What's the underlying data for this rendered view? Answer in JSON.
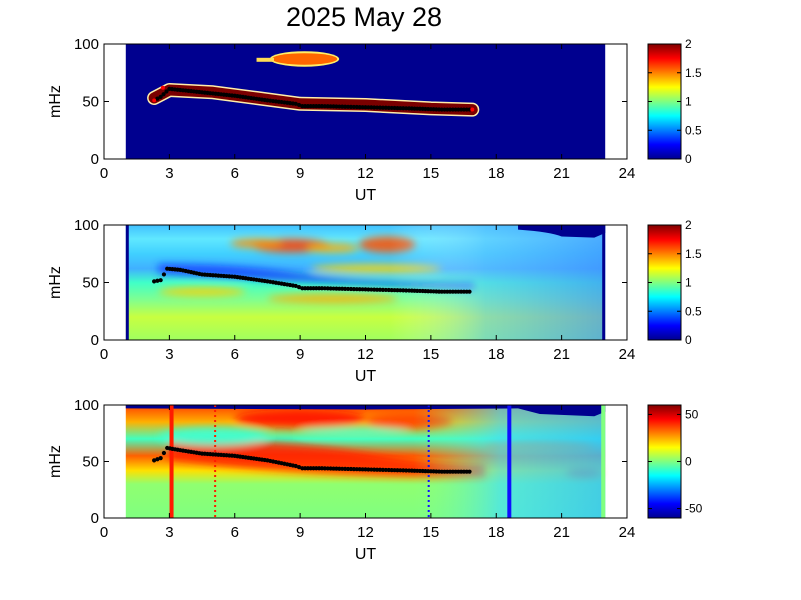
{
  "title": "2025 May 28",
  "colors": {
    "background_blue": "#00008f",
    "marker": "#000000",
    "peak_red": "#ff0000",
    "red_line": "#ff1a00",
    "blue_line": "#1010ff"
  },
  "colorbar_gradient": [
    "#00008f",
    "#0000ff",
    "#0080ff",
    "#00ffff",
    "#80ff80",
    "#ffff00",
    "#ff8000",
    "#ff0000",
    "#800000"
  ],
  "chart_data": [
    {
      "type": "heatmap",
      "name": "panel-1",
      "xlabel": "UT",
      "ylabel": "mHz",
      "xlim": [
        0,
        24
      ],
      "ylim": [
        0,
        100
      ],
      "xticks": [
        "0",
        "3",
        "6",
        "9",
        "12",
        "15",
        "18",
        "21",
        "24"
      ],
      "yticks": [
        "0",
        "50",
        "100"
      ],
      "data_extent_x": [
        1.0,
        23.0
      ],
      "colorbar": {
        "min": 0,
        "max": 2,
        "ticks": [
          "0",
          "0.5",
          "1",
          "1.5",
          "2"
        ]
      },
      "features": [
        {
          "kind": "band",
          "color": "#7a0000",
          "edge": "#ffeeaa",
          "path": [
            [
              2.3,
              53
            ],
            [
              3,
              60
            ],
            [
              5,
              58
            ],
            [
              7,
              53
            ],
            [
              9,
              48
            ],
            [
              12,
              47
            ],
            [
              15,
              44
            ],
            [
              16.9,
              43
            ]
          ],
          "thickness": 11
        },
        {
          "kind": "blob",
          "color": "#ff6600",
          "center": [
            9.2,
            87
          ],
          "rx": 1.5,
          "ry": 5
        }
      ],
      "peak_track": [
        [
          2.3,
          51
        ],
        [
          2.6,
          54
        ],
        [
          3.0,
          61
        ],
        [
          3.5,
          60
        ],
        [
          4.5,
          58
        ],
        [
          6.0,
          55
        ],
        [
          7.5,
          51
        ],
        [
          8.8,
          48
        ],
        [
          9.1,
          46
        ],
        [
          10.0,
          46
        ],
        [
          12.0,
          45
        ],
        [
          14.0,
          44
        ],
        [
          15.5,
          43
        ],
        [
          16.9,
          43
        ]
      ]
    },
    {
      "type": "heatmap",
      "name": "panel-2",
      "xlabel": "UT",
      "ylabel": "mHz",
      "xlim": [
        0,
        24
      ],
      "ylim": [
        0,
        100
      ],
      "xticks": [
        "0",
        "3",
        "6",
        "9",
        "12",
        "15",
        "18",
        "21",
        "24"
      ],
      "yticks": [
        "0",
        "50",
        "100"
      ],
      "data_extent_x": [
        1.0,
        23.0
      ],
      "colorbar": {
        "min": 0,
        "max": 2,
        "ticks": [
          "0",
          "0.5",
          "1",
          "1.5",
          "2"
        ]
      },
      "peak_track": [
        [
          2.3,
          51
        ],
        [
          2.6,
          52
        ],
        [
          2.9,
          62
        ],
        [
          3.5,
          61
        ],
        [
          4.5,
          57
        ],
        [
          6.0,
          55
        ],
        [
          7.5,
          51
        ],
        [
          8.8,
          47
        ],
        [
          9.1,
          45
        ],
        [
          10.0,
          45
        ],
        [
          12.0,
          44
        ],
        [
          14.0,
          43
        ],
        [
          15.5,
          42
        ],
        [
          16.9,
          42
        ]
      ]
    },
    {
      "type": "heatmap",
      "name": "panel-3",
      "xlabel": "UT",
      "ylabel": "mHz",
      "xlim": [
        0,
        24
      ],
      "ylim": [
        0,
        100
      ],
      "xticks": [
        "0",
        "3",
        "6",
        "9",
        "12",
        "15",
        "18",
        "21",
        "24"
      ],
      "yticks": [
        "0",
        "50",
        "100"
      ],
      "data_extent_x": [
        1.0,
        23.0
      ],
      "colorbar": {
        "min": -60,
        "max": 60,
        "ticks": [
          "50",
          "0",
          "-50"
        ]
      },
      "vertical_lines": [
        {
          "x": 3.1,
          "color": "#ff1a00",
          "style": "solid"
        },
        {
          "x": 5.1,
          "color": "#ff1a00",
          "style": "dotted"
        },
        {
          "x": 14.9,
          "color": "#1010ff",
          "style": "dotted"
        },
        {
          "x": 18.6,
          "color": "#1010ff",
          "style": "solid"
        }
      ],
      "peak_track": [
        [
          2.3,
          51
        ],
        [
          2.6,
          53
        ],
        [
          2.9,
          62
        ],
        [
          3.5,
          60
        ],
        [
          4.5,
          57
        ],
        [
          6.0,
          55
        ],
        [
          7.5,
          51
        ],
        [
          8.8,
          46
        ],
        [
          9.1,
          44
        ],
        [
          10.0,
          44
        ],
        [
          12.0,
          43
        ],
        [
          14.0,
          42
        ],
        [
          15.5,
          41
        ],
        [
          16.9,
          41
        ]
      ]
    }
  ]
}
